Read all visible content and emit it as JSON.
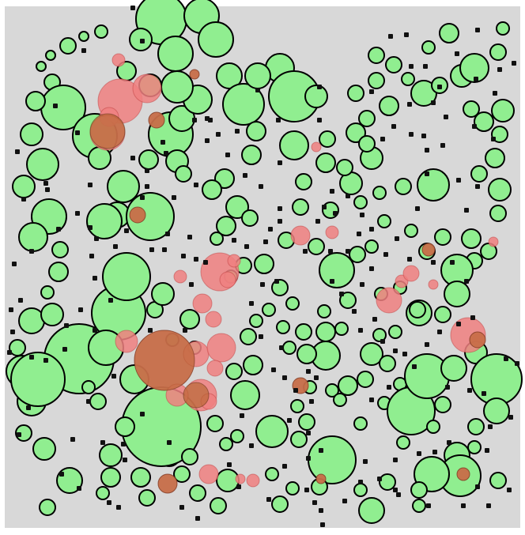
{
  "arena": {
    "background": "#d8d8d8",
    "border_color": "#ffffff"
  },
  "colors": {
    "green_fill": "#90ee90",
    "red_fill": "#f08080",
    "stroke": "#000000",
    "dot": "#111111",
    "overlap_fill": "#b5652f"
  },
  "icons": {
    "green": "cell-green-icon",
    "red": "cell-red-icon",
    "dot": "food-dot-icon"
  }
}
